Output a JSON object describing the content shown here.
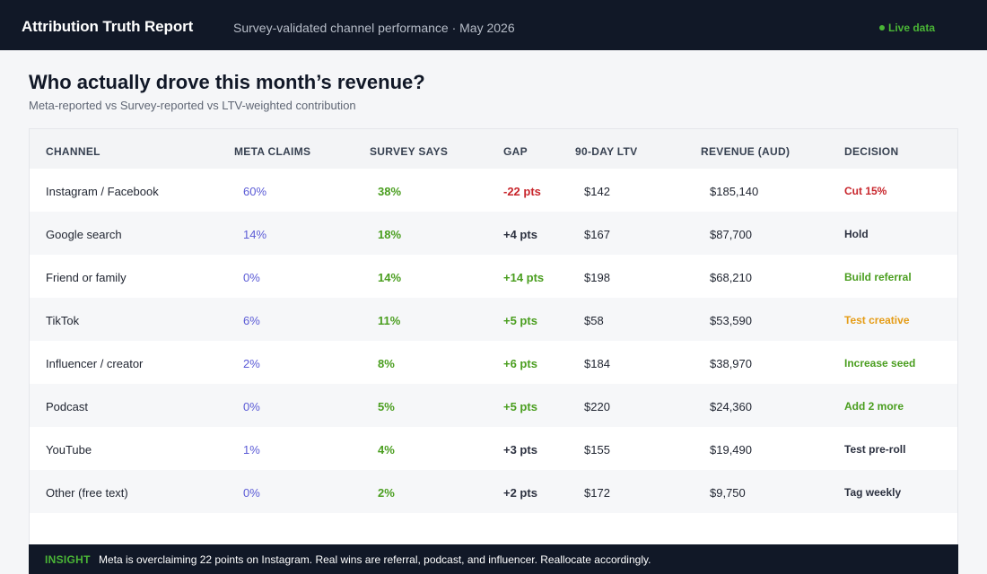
{
  "header": {
    "title": "Attribution Truth Report",
    "subtitle": "Survey-validated channel performance · May 2026",
    "live_label": "Live data",
    "live_color": "#4ab536"
  },
  "main": {
    "heading": "Who actually drove this month’s revenue?",
    "subheading": "Meta-reported vs Survey-reported vs LTV-weighted contribution"
  },
  "table": {
    "columns": [
      "CHANNEL",
      "META CLAIMS",
      "SURVEY SAYS",
      "GAP",
      "90-DAY LTV",
      "REVENUE (AUD)",
      "DECISION"
    ],
    "rows": [
      {
        "channel": "Instagram / Facebook",
        "meta": "60%",
        "survey": "38%",
        "gap": "-22 pts",
        "ltv": "$142",
        "revenue": "$185,140",
        "decision": "Cut 15%"
      },
      {
        "channel": "Google search",
        "meta": "14%",
        "survey": "18%",
        "gap": "+4 pts",
        "ltv": "$167",
        "revenue": "$87,700",
        "decision": "Hold"
      },
      {
        "channel": "Friend or family",
        "meta": "0%",
        "survey": "14%",
        "gap": "+14 pts",
        "ltv": "$198",
        "revenue": "$68,210",
        "decision": "Build referral"
      },
      {
        "channel": "TikTok",
        "meta": "6%",
        "survey": "11%",
        "gap": "+5 pts",
        "ltv": "$58",
        "revenue": "$53,590",
        "decision": "Test creative"
      },
      {
        "channel": "Influencer / creator",
        "meta": "2%",
        "survey": "8%",
        "gap": "+6 pts",
        "ltv": "$184",
        "revenue": "$38,970",
        "decision": "Increase seed"
      },
      {
        "channel": "Podcast",
        "meta": "0%",
        "survey": "5%",
        "gap": "+5 pts",
        "ltv": "$220",
        "revenue": "$24,360",
        "decision": "Add 2 more"
      },
      {
        "channel": "YouTube",
        "meta": "1%",
        "survey": "4%",
        "gap": "+3 pts",
        "ltv": "$155",
        "revenue": "$19,490",
        "decision": "Test pre-roll"
      },
      {
        "channel": "Other (free text)",
        "meta": "0%",
        "survey": "2%",
        "gap": "+2 pts",
        "ltv": "$172",
        "revenue": "$9,750",
        "decision": "Tag weekly"
      }
    ]
  },
  "insight": {
    "label": "INSIGHT",
    "text": "Meta is overclaiming 22 points on Instagram. Real wins are referral, podcast, and influencer. Reallocate accordingly."
  },
  "colors": {
    "header_bg": "#111827",
    "meta": "#5b5bd6",
    "survey": "#4a9e1f",
    "negative": "#c8262c",
    "positive": "#4a9e1f",
    "warning": "#e59c16",
    "neutral": "#2c3140"
  }
}
